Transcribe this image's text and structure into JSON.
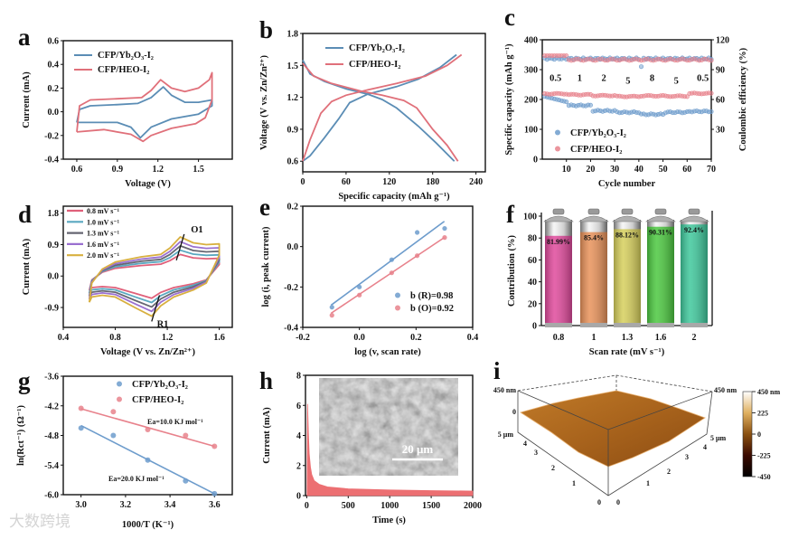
{
  "figure": {
    "watermark": "大数跨境"
  },
  "chart_data": [
    {
      "panel": "a",
      "type": "line",
      "xlabel": "Voltage (V)",
      "ylabel": "Current (mA)",
      "xlim": [
        0.5,
        1.75
      ],
      "ylim": [
        -0.4,
        0.6
      ],
      "xticks": [
        "0.6",
        "0.9",
        "1.2",
        "1.5"
      ],
      "yticks": [
        "-0.4",
        "-0.2",
        "0.0",
        "0.2",
        "0.4",
        "0.6"
      ],
      "series": [
        {
          "name": "CFP/Yb₂O₃-I₂",
          "color": "#5b8db5",
          "points": [
            [
              0.6,
              -0.09
            ],
            [
              0.62,
              0.02
            ],
            [
              0.7,
              0.05
            ],
            [
              0.9,
              0.06
            ],
            [
              1.05,
              0.07
            ],
            [
              1.15,
              0.12
            ],
            [
              1.24,
              0.21
            ],
            [
              1.3,
              0.14
            ],
            [
              1.4,
              0.08
            ],
            [
              1.5,
              0.08
            ],
            [
              1.6,
              0.1
            ],
            [
              1.6,
              0.05
            ],
            [
              1.5,
              -0.02
            ],
            [
              1.3,
              -0.06
            ],
            [
              1.15,
              -0.13
            ],
            [
              1.07,
              -0.22
            ],
            [
              1.0,
              -0.13
            ],
            [
              0.9,
              -0.09
            ],
            [
              0.7,
              -0.09
            ],
            [
              0.6,
              -0.09
            ]
          ]
        },
        {
          "name": "CFP/HEO-I₂",
          "color": "#e0707a",
          "points": [
            [
              0.6,
              -0.17
            ],
            [
              0.62,
              0.05
            ],
            [
              0.7,
              0.1
            ],
            [
              0.9,
              0.11
            ],
            [
              1.08,
              0.12
            ],
            [
              1.15,
              0.18
            ],
            [
              1.22,
              0.27
            ],
            [
              1.3,
              0.2
            ],
            [
              1.4,
              0.17
            ],
            [
              1.5,
              0.2
            ],
            [
              1.58,
              0.27
            ],
            [
              1.6,
              0.33
            ],
            [
              1.6,
              0.1
            ],
            [
              1.55,
              -0.05
            ],
            [
              1.48,
              -0.1
            ],
            [
              1.3,
              -0.14
            ],
            [
              1.15,
              -0.2
            ],
            [
              1.09,
              -0.25
            ],
            [
              1.0,
              -0.19
            ],
            [
              0.8,
              -0.15
            ],
            [
              0.6,
              -0.17
            ]
          ]
        }
      ]
    },
    {
      "panel": "b",
      "type": "line",
      "xlabel": "Specific capacity (mAh g⁻¹)",
      "ylabel": "Voltage (V vs. Zn/Zn²⁺)",
      "xlim": [
        0,
        253
      ],
      "ylim": [
        0.5,
        1.8
      ],
      "xticks": [
        "0",
        "60",
        "120",
        "180",
        "240"
      ],
      "yticks": [
        "0.6",
        "0.9",
        "1.2",
        "1.5",
        "1.8"
      ],
      "series": [
        {
          "name": "CFP/Yb₂O₃-I₂",
          "color": "#5b8db5",
          "charge": [
            [
              0,
              0.6
            ],
            [
              10,
              0.65
            ],
            [
              30,
              0.82
            ],
            [
              50,
              1.0
            ],
            [
              65,
              1.15
            ],
            [
              90,
              1.23
            ],
            [
              130,
              1.3
            ],
            [
              160,
              1.37
            ],
            [
              190,
              1.48
            ],
            [
              213,
              1.6
            ]
          ],
          "discharge": [
            [
              0,
              1.55
            ],
            [
              10,
              1.42
            ],
            [
              30,
              1.35
            ],
            [
              60,
              1.28
            ],
            [
              90,
              1.23
            ],
            [
              110,
              1.18
            ],
            [
              130,
              1.1
            ],
            [
              160,
              0.93
            ],
            [
              185,
              0.77
            ],
            [
              210,
              0.6
            ]
          ]
        },
        {
          "name": "CFP/HEO-I₂",
          "color": "#e0707a",
          "charge": [
            [
              0,
              0.6
            ],
            [
              10,
              0.8
            ],
            [
              25,
              1.05
            ],
            [
              40,
              1.16
            ],
            [
              60,
              1.22
            ],
            [
              90,
              1.27
            ],
            [
              130,
              1.33
            ],
            [
              170,
              1.4
            ],
            [
              200,
              1.5
            ],
            [
              220,
              1.6
            ]
          ],
          "discharge": [
            [
              0,
              1.52
            ],
            [
              15,
              1.4
            ],
            [
              40,
              1.33
            ],
            [
              80,
              1.26
            ],
            [
              110,
              1.22
            ],
            [
              140,
              1.17
            ],
            [
              158,
              1.1
            ],
            [
              180,
              0.9
            ],
            [
              200,
              0.75
            ],
            [
              215,
              0.6
            ]
          ]
        }
      ]
    },
    {
      "panel": "c",
      "type": "scatter",
      "xlabel": "Cycle number",
      "ylabel": "Specific capacity (mAh g⁻¹)",
      "y2label": "Coulombic efficiency (%)",
      "xlim": [
        0,
        70
      ],
      "ylim": [
        0,
        400
      ],
      "y2lim": [
        0,
        120
      ],
      "xticks": [
        "10",
        "20",
        "30",
        "40",
        "50",
        "60",
        "70"
      ],
      "yticks": [
        "0",
        "100",
        "200",
        "300",
        "400"
      ],
      "y2ticks": [
        "30",
        "60",
        "90",
        "120"
      ],
      "rate_segments": [
        {
          "label": "0.5",
          "start": 1,
          "end": 10,
          "yb": 200,
          "heo": 219
        },
        {
          "label": "1",
          "start": 11,
          "end": 20,
          "yb": 180,
          "heo": 216
        },
        {
          "label": "2",
          "start": 21,
          "end": 30,
          "yb": 162,
          "heo": 213
        },
        {
          "label": "5",
          "start": 31,
          "end": 40,
          "yb": 157,
          "heo": 210
        },
        {
          "label": "8",
          "start": 41,
          "end": 50,
          "yb": 150,
          "heo": 212
        },
        {
          "label": "5",
          "start": 51,
          "end": 60,
          "yb": 157,
          "heo": 211
        },
        {
          "label": "0.5",
          "start": 61,
          "end": 70,
          "yb": 160,
          "heo": 220
        }
      ],
      "ce": {
        "yb": 101,
        "heo_first": 104,
        "heo": 100
      },
      "series": [
        {
          "name": "CFP/Yb₂O₃-I₂",
          "color": "#6d9ccc"
        },
        {
          "name": "CFP/HEO-I₂",
          "color": "#e8828c"
        }
      ]
    },
    {
      "panel": "d",
      "type": "line",
      "xlabel": "Voltage (V vs. Zn/Zn²⁺)",
      "ylabel": "Current (mA)",
      "xlim": [
        0.4,
        1.7
      ],
      "ylim": [
        -1.47,
        2.0
      ],
      "xticks": [
        "0.4",
        "0.8",
        "1.2",
        "1.6"
      ],
      "yticks": [
        "-0.9",
        "0.0",
        "0.9",
        "1.8"
      ],
      "base_loop": [
        [
          0.6,
          -0.75
        ],
        [
          0.62,
          -0.2
        ],
        [
          0.7,
          0.2
        ],
        [
          0.8,
          0.4
        ],
        [
          1.0,
          0.55
        ],
        [
          1.15,
          0.62
        ],
        [
          1.22,
          0.8
        ],
        [
          1.3,
          1.12
        ],
        [
          1.4,
          0.95
        ],
        [
          1.5,
          0.9
        ],
        [
          1.6,
          0.92
        ],
        [
          1.6,
          0.6
        ],
        [
          1.5,
          -0.2
        ],
        [
          1.4,
          -0.4
        ],
        [
          1.25,
          -0.6
        ],
        [
          1.15,
          -0.85
        ],
        [
          1.08,
          -1.15
        ],
        [
          0.95,
          -0.9
        ],
        [
          0.8,
          -0.6
        ],
        [
          0.7,
          -0.55
        ],
        [
          0.62,
          -0.6
        ],
        [
          0.6,
          -0.75
        ]
      ],
      "series": [
        {
          "name": "0.8 mV s⁻¹",
          "color": "#e0607a",
          "scale": 0.55
        },
        {
          "name": "1.0 mV s⁻¹",
          "color": "#5aa8c0",
          "scale": 0.66
        },
        {
          "name": "1.3 mV s⁻¹",
          "color": "#666672",
          "scale": 0.77
        },
        {
          "name": "1.6 mV s⁻¹",
          "color": "#9a70d0",
          "scale": 0.88
        },
        {
          "name": "2.0 mV s⁻¹",
          "color": "#d8b040",
          "scale": 1.0
        }
      ],
      "annotations": [
        "O1",
        "R1"
      ]
    },
    {
      "panel": "e",
      "type": "scatter",
      "xlabel": "log (v, scan rate)",
      "ylabel": "log  (i, peak current)",
      "xlim": [
        -0.2,
        0.4
      ],
      "ylim": [
        -0.4,
        0.2
      ],
      "xticks": [
        "-0.2",
        "0.0",
        "0.2",
        "0.4"
      ],
      "yticks": [
        "-0.4",
        "-0.2",
        "0.0",
        "0.2"
      ],
      "x": [
        -0.097,
        0.0,
        0.114,
        0.204,
        0.301
      ],
      "series": [
        {
          "name": "b (R)=0.98",
          "color": "#6d9ccc",
          "y": [
            -0.3,
            -0.2,
            -0.065,
            0.07,
            0.09
          ],
          "fit": [
            [
              -0.1,
              -0.29
            ],
            [
              0.3,
              0.125
            ]
          ]
        },
        {
          "name": "b (O)=0.92",
          "color": "#e8828c",
          "y": [
            -0.34,
            -0.24,
            -0.13,
            -0.045,
            0.045
          ],
          "fit": [
            [
              -0.1,
              -0.33
            ],
            [
              0.3,
              0.045
            ]
          ]
        }
      ]
    },
    {
      "panel": "f",
      "type": "bar",
      "xlabel": "Scan rate (mV s⁻¹)",
      "ylabel": "Contribution (%)",
      "ylim": [
        0,
        100
      ],
      "yticks": [
        "0",
        "20",
        "40",
        "60",
        "80",
        "100"
      ],
      "categories": [
        "0.8",
        "1",
        "1.3",
        "1.6",
        "2"
      ],
      "values": [
        81.99,
        85.4,
        88.12,
        90.31,
        92.4
      ],
      "value_labels": [
        "81.99%",
        "85.4%",
        "88.12%",
        "90.31%",
        "92.4%"
      ],
      "colors": [
        "#e04a9c",
        "#e8925a",
        "#d6cf5c",
        "#4cc840",
        "#3fc89c"
      ]
    },
    {
      "panel": "g",
      "type": "scatter",
      "xlabel": "1000/T (K⁻¹)",
      "ylabel": "ln(Rct⁻¹) (Ω⁻¹)",
      "xlim": [
        2.92,
        3.68
      ],
      "ylim": [
        -6.0,
        -3.6
      ],
      "xticks": [
        "3.0",
        "3.2",
        "3.4",
        "3.6"
      ],
      "yticks": [
        "-6.0",
        "-5.4",
        "-4.8",
        "-4.2",
        "-3.6"
      ],
      "x": [
        3.0,
        3.145,
        3.3,
        3.47,
        3.6
      ],
      "series": [
        {
          "name": "CFP/Yb₂O₃-I₂",
          "color": "#6d9ccc",
          "y": [
            -4.65,
            -4.8,
            -5.3,
            -5.72,
            -5.98
          ],
          "fit": [
            [
              3.0,
              -4.6
            ],
            [
              3.6,
              -5.98
            ]
          ],
          "annotation": "Ea=20.0 KJ mol⁻¹"
        },
        {
          "name": "CFP/HEO-I₂",
          "color": "#e8828c",
          "y": [
            -4.25,
            -4.32,
            -4.68,
            -4.8,
            -5.02
          ],
          "fit": [
            [
              3.0,
              -4.26
            ],
            [
              3.6,
              -5.02
            ]
          ],
          "annotation": "Ea=10.0 KJ mol⁻¹"
        }
      ]
    },
    {
      "panel": "h",
      "type": "area",
      "xlabel": "Time (s)",
      "ylabel": "Current (mA)",
      "xlim": [
        -15,
        2000
      ],
      "ylim": [
        0,
        8
      ],
      "xticks": [
        "0",
        "500",
        "1000",
        "1500",
        "2000"
      ],
      "yticks": [
        "0",
        "2",
        "4",
        "6",
        "8"
      ],
      "points": [
        [
          5,
          0.2
        ],
        [
          10,
          6.1
        ],
        [
          20,
          4.2
        ],
        [
          30,
          2.8
        ],
        [
          45,
          1.9
        ],
        [
          60,
          1.4
        ],
        [
          90,
          1.0
        ],
        [
          150,
          0.75
        ],
        [
          250,
          0.58
        ],
        [
          500,
          0.45
        ],
        [
          1000,
          0.37
        ],
        [
          1500,
          0.33
        ],
        [
          2000,
          0.3
        ]
      ],
      "color": "#ec6f72",
      "inset_scale_bar": "20 μm"
    },
    {
      "panel": "i",
      "type": "surface",
      "z_labels": [
        "450 nm",
        "0"
      ],
      "z_labels_right": [
        "450 nm"
      ],
      "axis_ticks": [
        "0",
        "1",
        "2",
        "3",
        "4",
        "5 μm"
      ],
      "colorbar_ticks": [
        "450 nm",
        "225",
        "0",
        "-225",
        "-450"
      ]
    }
  ]
}
